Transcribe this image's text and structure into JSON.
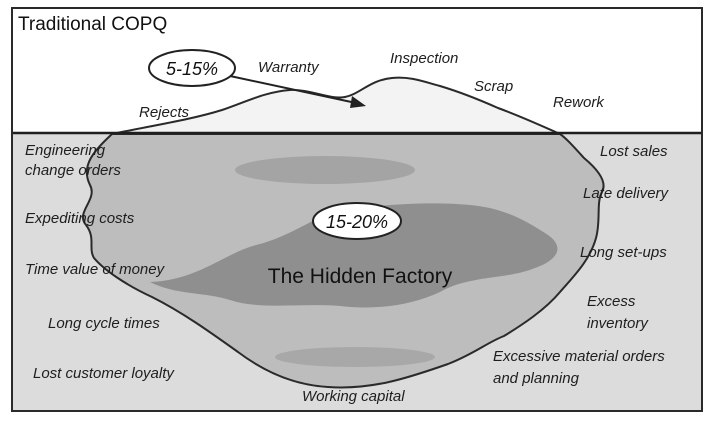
{
  "title": "Traditional COPQ",
  "callouts": {
    "above_water": "5-15%",
    "below_water": "15-20%"
  },
  "center_label": "The Hidden Factory",
  "above_water_items": {
    "warranty": "Warranty",
    "inspection": "Inspection",
    "scrap": "Scrap",
    "rework": "Rework",
    "rejects": "Rejects"
  },
  "left_items": {
    "engineering_1": "Engineering",
    "engineering_2": "change orders",
    "expediting": "Expediting costs",
    "time_value": "Time value of money",
    "cycle_times": "Long cycle times",
    "loyalty": "Lost customer loyalty"
  },
  "right_items": {
    "lost_sales": "Lost sales",
    "late_delivery": "Late delivery",
    "setups": "Long set-ups",
    "excess_1": "Excess",
    "excess_2": "inventory",
    "material_1": "Excessive material orders",
    "material_2": "and planning"
  },
  "bottom_items": {
    "working_capital": "Working capital"
  },
  "colors": {
    "frame": "#2a2a2a",
    "water": "#dcdcdc",
    "sky": "#ffffff",
    "iceberg_light": "#bdbdbd",
    "iceberg_dark": "#8f8f8f",
    "iceberg_top": "#f3f3f3"
  }
}
